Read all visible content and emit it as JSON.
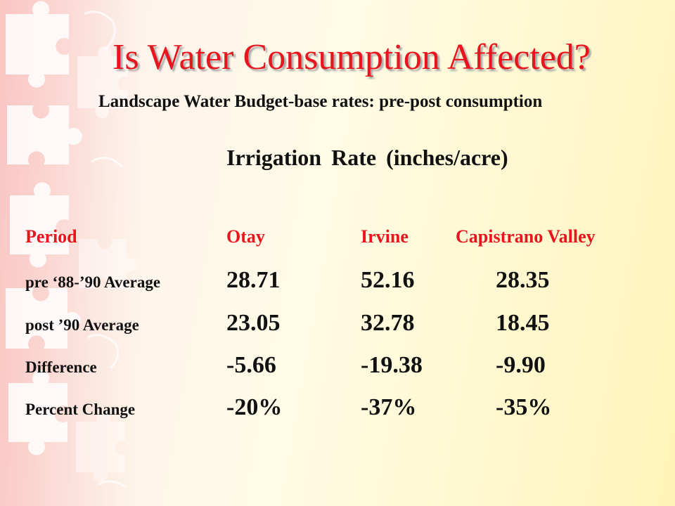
{
  "slide": {
    "title": "Is Water Consumption Affected?",
    "subtitle": "Landscape Water Budget-base rates: pre-post consumption",
    "table_title": "Irrigation Rate (inches/acre)",
    "colors": {
      "title": "#e8141e",
      "header": "#e8141e",
      "text": "#111111"
    }
  },
  "table": {
    "headers": [
      "Period",
      "Otay",
      "Irvine",
      "Capistrano Valley"
    ],
    "rows": [
      {
        "label": "pre ‘88-’90 Average",
        "values": [
          "28.71",
          "52.16",
          "28.35"
        ]
      },
      {
        "label": "post ’90 Average",
        "values": [
          "23.05",
          "32.78",
          "18.45"
        ]
      },
      {
        "label": "Difference",
        "values": [
          "-5.66",
          "-19.38",
          "-9.90"
        ]
      },
      {
        "label": "Percent Change",
        "values": [
          "-20%",
          "-37%",
          "-35%"
        ]
      }
    ]
  }
}
